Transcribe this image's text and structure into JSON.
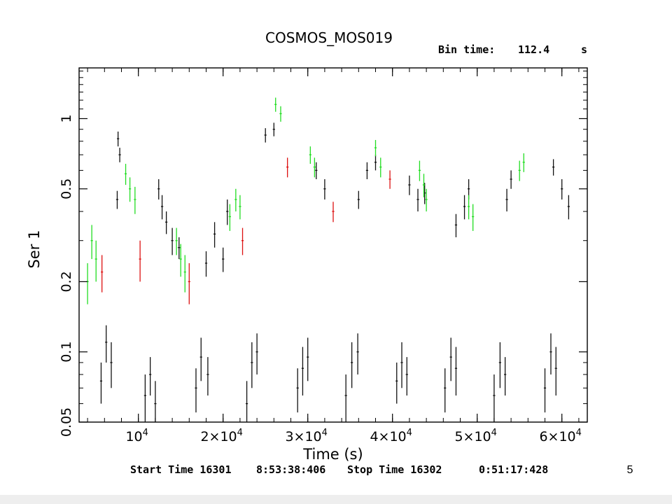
{
  "slide": {
    "number": "5"
  },
  "chart_data": {
    "type": "scatter",
    "title": "COSMOS_MOS019",
    "bin_time": {
      "label": "Bin time:",
      "value": "112.4",
      "unit": "s"
    },
    "xlabel": "Time (s)",
    "ylabel": "Ser 1",
    "x_scale": "linear",
    "y_scale": "log",
    "xlim": [
      3000,
      63000
    ],
    "ylim": [
      0.05,
      1.65
    ],
    "x_ticks": [
      {
        "value": 10000,
        "label": "10^4",
        "mantissa": "",
        "exponent": "4"
      },
      {
        "value": 20000,
        "label": "2×10^4",
        "mantissa": "2×",
        "exponent": "4"
      },
      {
        "value": 30000,
        "label": "3×10^4",
        "mantissa": "3×",
        "exponent": "4"
      },
      {
        "value": 40000,
        "label": "4×10^4",
        "mantissa": "4×",
        "exponent": "4"
      },
      {
        "value": 50000,
        "label": "5×10^4",
        "mantissa": "5×",
        "exponent": "4"
      },
      {
        "value": 60000,
        "label": "6×10^4",
        "mantissa": "6×",
        "exponent": "4"
      }
    ],
    "y_ticks": [
      {
        "value": 0.05,
        "label": "0.05"
      },
      {
        "value": 0.1,
        "label": "0.1"
      },
      {
        "value": 0.2,
        "label": "0.2"
      },
      {
        "value": 0.5,
        "label": "0.5"
      },
      {
        "value": 1,
        "label": "1"
      }
    ],
    "footer": {
      "start_label": "Start Time 16301",
      "start_value": "8:53:38:406",
      "stop_label": "Stop Time 16302",
      "stop_value": "0:51:17:428"
    },
    "colors": {
      "series_high": "#111111",
      "series_green": "#22dd22",
      "series_red": "#dd1111",
      "series_low": "#111111"
    },
    "series": [
      {
        "color": "black",
        "points": [
          [
            7600,
            0.82,
            0.06
          ],
          [
            7800,
            0.7,
            0.05
          ],
          [
            7500,
            0.45,
            0.04
          ],
          [
            12400,
            0.5,
            0.05
          ],
          [
            12800,
            0.42,
            0.05
          ],
          [
            13300,
            0.36,
            0.04
          ],
          [
            14000,
            0.3,
            0.04
          ],
          [
            18000,
            0.24,
            0.03
          ],
          [
            19000,
            0.32,
            0.04
          ],
          [
            20500,
            0.4,
            0.05
          ],
          [
            25000,
            0.85,
            0.06
          ],
          [
            26000,
            0.9,
            0.06
          ],
          [
            31000,
            0.6,
            0.05
          ],
          [
            32000,
            0.5,
            0.05
          ],
          [
            37000,
            0.6,
            0.05
          ],
          [
            38000,
            0.65,
            0.05
          ],
          [
            42000,
            0.52,
            0.05
          ],
          [
            43000,
            0.45,
            0.05
          ],
          [
            47500,
            0.35,
            0.04
          ],
          [
            48500,
            0.42,
            0.05
          ],
          [
            53500,
            0.45,
            0.05
          ],
          [
            54000,
            0.55,
            0.05
          ],
          [
            59000,
            0.62,
            0.05
          ],
          [
            60000,
            0.5,
            0.05
          ],
          [
            60800,
            0.42,
            0.05
          ],
          [
            20000,
            0.25,
            0.03
          ],
          [
            14800,
            0.28,
            0.03
          ],
          [
            43800,
            0.48,
            0.05
          ],
          [
            49000,
            0.5,
            0.05
          ],
          [
            36000,
            0.45,
            0.04
          ]
        ]
      },
      {
        "color": "green",
        "points": [
          [
            4000,
            0.2,
            0.04
          ],
          [
            4500,
            0.3,
            0.05
          ],
          [
            5000,
            0.25,
            0.05
          ],
          [
            8500,
            0.58,
            0.06
          ],
          [
            9000,
            0.5,
            0.06
          ],
          [
            9600,
            0.45,
            0.06
          ],
          [
            14500,
            0.3,
            0.04
          ],
          [
            15000,
            0.25,
            0.04
          ],
          [
            15500,
            0.22,
            0.04
          ],
          [
            20800,
            0.38,
            0.05
          ],
          [
            21500,
            0.45,
            0.05
          ],
          [
            22000,
            0.42,
            0.05
          ],
          [
            26200,
            1.15,
            0.08
          ],
          [
            26800,
            1.05,
            0.08
          ],
          [
            30300,
            0.7,
            0.06
          ],
          [
            30800,
            0.62,
            0.06
          ],
          [
            38000,
            0.75,
            0.06
          ],
          [
            38600,
            0.62,
            0.06
          ],
          [
            43200,
            0.6,
            0.06
          ],
          [
            43700,
            0.52,
            0.06
          ],
          [
            49000,
            0.42,
            0.05
          ],
          [
            49500,
            0.38,
            0.05
          ],
          [
            55000,
            0.6,
            0.06
          ],
          [
            55500,
            0.65,
            0.06
          ],
          [
            44000,
            0.45,
            0.05
          ]
        ]
      },
      {
        "color": "red",
        "points": [
          [
            5700,
            0.22,
            0.04
          ],
          [
            10200,
            0.25,
            0.05
          ],
          [
            16000,
            0.2,
            0.04
          ],
          [
            22300,
            0.3,
            0.04
          ],
          [
            27600,
            0.62,
            0.06
          ],
          [
            33000,
            0.4,
            0.04
          ],
          [
            39700,
            0.55,
            0.05
          ]
        ]
      },
      {
        "color": "black",
        "points": [
          [
            5600,
            0.075,
            0.015
          ],
          [
            6200,
            0.11,
            0.02
          ],
          [
            6800,
            0.09,
            0.02
          ],
          [
            10800,
            0.065,
            0.015
          ],
          [
            11400,
            0.08,
            0.015
          ],
          [
            12000,
            0.06,
            0.015
          ],
          [
            16800,
            0.07,
            0.015
          ],
          [
            17400,
            0.095,
            0.02
          ],
          [
            18200,
            0.08,
            0.015
          ],
          [
            22800,
            0.06,
            0.015
          ],
          [
            23400,
            0.09,
            0.02
          ],
          [
            24000,
            0.1,
            0.02
          ],
          [
            28800,
            0.07,
            0.015
          ],
          [
            29400,
            0.085,
            0.02
          ],
          [
            30000,
            0.095,
            0.02
          ],
          [
            34500,
            0.065,
            0.015
          ],
          [
            35200,
            0.09,
            0.02
          ],
          [
            35900,
            0.1,
            0.02
          ],
          [
            40500,
            0.075,
            0.015
          ],
          [
            41100,
            0.09,
            0.02
          ],
          [
            41700,
            0.08,
            0.015
          ],
          [
            46200,
            0.07,
            0.015
          ],
          [
            46900,
            0.095,
            0.02
          ],
          [
            47500,
            0.085,
            0.02
          ],
          [
            52000,
            0.065,
            0.015
          ],
          [
            52700,
            0.09,
            0.02
          ],
          [
            53300,
            0.08,
            0.015
          ],
          [
            58000,
            0.07,
            0.015
          ],
          [
            58700,
            0.1,
            0.02
          ],
          [
            59300,
            0.085,
            0.02
          ]
        ]
      }
    ]
  }
}
